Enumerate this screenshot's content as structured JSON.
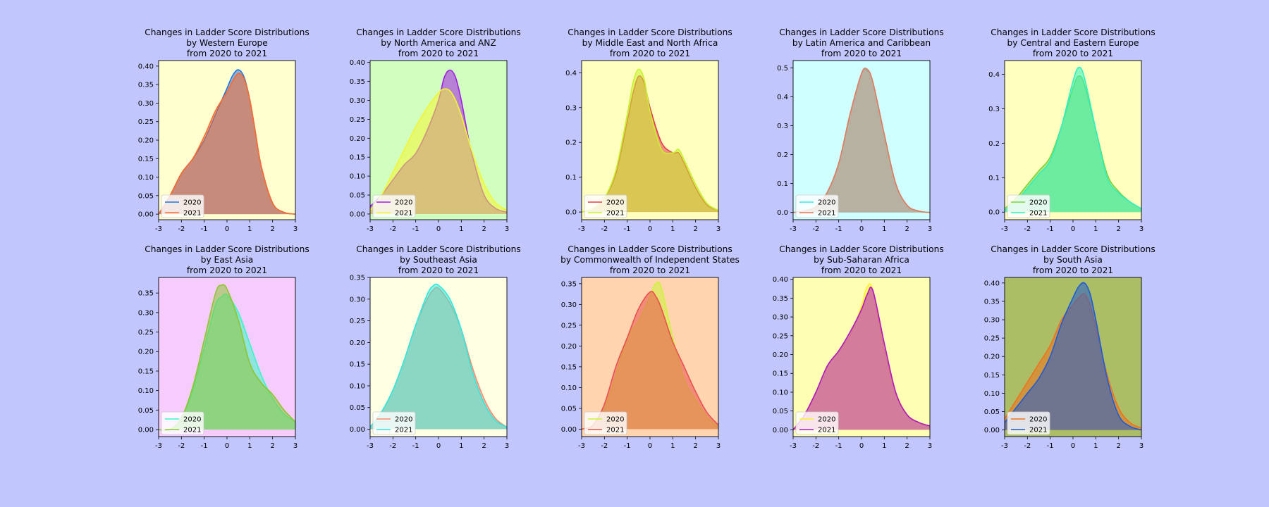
{
  "figure": {
    "background": "#c1c6fc"
  },
  "chart_data": [
    {
      "type": "area",
      "title": [
        "Changes in Ladder Score Distributions",
        "by Western Europe",
        "from 2020 to 2021"
      ],
      "background": "#ffffd0",
      "xlim": [
        -3,
        3
      ],
      "ylim": [
        -0.015,
        0.415
      ],
      "xticks": [
        "-3",
        "-2",
        "-1",
        "0",
        "1",
        "2",
        "3"
      ],
      "yticks": [
        "0.00",
        "0.05",
        "0.10",
        "0.15",
        "0.20",
        "0.25",
        "0.30",
        "0.35",
        "0.40"
      ],
      "x": [
        -3,
        -2.5,
        -2,
        -1.5,
        -1,
        -0.5,
        0,
        0.25,
        0.5,
        0.75,
        1,
        1.25,
        1.5,
        2,
        2.5,
        3
      ],
      "legend": "lower-left",
      "series": [
        {
          "name": "2020",
          "color": "#1f77e4",
          "values": [
            0.0,
            0.05,
            0.11,
            0.15,
            0.2,
            0.27,
            0.34,
            0.375,
            0.39,
            0.37,
            0.31,
            0.22,
            0.13,
            0.03,
            0.005,
            0.0
          ]
        },
        {
          "name": "2021",
          "color": "#ff6a2c",
          "values": [
            0.0,
            0.05,
            0.11,
            0.15,
            0.21,
            0.28,
            0.33,
            0.36,
            0.38,
            0.365,
            0.31,
            0.22,
            0.13,
            0.03,
            0.005,
            0.0
          ]
        }
      ]
    },
    {
      "type": "area",
      "title": [
        "Changes in Ladder Score Distributions",
        "by North America and ANZ",
        "from 2020 to 2021"
      ],
      "background": "#d0ffc0",
      "xlim": [
        -3,
        3
      ],
      "ylim": [
        -0.015,
        0.405
      ],
      "xticks": [
        "-3",
        "-2",
        "-1",
        "0",
        "1",
        "2",
        "3"
      ],
      "yticks": [
        "0.00",
        "0.05",
        "0.10",
        "0.15",
        "0.20",
        "0.25",
        "0.30",
        "0.35",
        "0.40"
      ],
      "x": [
        -3,
        -2.5,
        -2,
        -1.5,
        -1,
        -0.5,
        0,
        0.25,
        0.5,
        0.75,
        1,
        1.25,
        1.5,
        2,
        2.5,
        3
      ],
      "legend": "lower-left",
      "series": [
        {
          "name": "2020",
          "color": "#a21ce6",
          "values": [
            0.02,
            0.05,
            0.09,
            0.13,
            0.16,
            0.22,
            0.3,
            0.36,
            0.38,
            0.36,
            0.3,
            0.22,
            0.15,
            0.05,
            0.015,
            0.005
          ]
        },
        {
          "name": "2021",
          "color": "#f2f531",
          "values": [
            0.01,
            0.05,
            0.11,
            0.17,
            0.23,
            0.28,
            0.32,
            0.33,
            0.325,
            0.3,
            0.26,
            0.21,
            0.16,
            0.08,
            0.03,
            0.01
          ]
        }
      ]
    },
    {
      "type": "area",
      "title": [
        "Changes in Ladder Score Distributions",
        "by Middle East and North Africa",
        "from 2020 to 2021"
      ],
      "background": "#ffffc0",
      "xlim": [
        -3,
        3
      ],
      "ylim": [
        -0.022,
        0.435
      ],
      "xticks": [
        "-3",
        "-2",
        "-1",
        "0",
        "1",
        "2",
        "3"
      ],
      "yticks": [
        "0.0",
        "0.1",
        "0.2",
        "0.3",
        "0.4"
      ],
      "x": [
        -3,
        -2.5,
        -2,
        -1.5,
        -1,
        -0.75,
        -0.5,
        -0.25,
        0,
        0.5,
        1,
        1.25,
        1.5,
        2,
        2.5,
        3
      ],
      "legend": "lower-left",
      "series": [
        {
          "name": "2020",
          "color": "#e8394e",
          "values": [
            0.0,
            0.01,
            0.04,
            0.11,
            0.26,
            0.34,
            0.39,
            0.37,
            0.3,
            0.2,
            0.17,
            0.17,
            0.14,
            0.07,
            0.02,
            0.005
          ]
        },
        {
          "name": "2021",
          "color": "#c6f32e",
          "values": [
            0.0,
            0.01,
            0.04,
            0.12,
            0.28,
            0.37,
            0.41,
            0.38,
            0.29,
            0.18,
            0.17,
            0.18,
            0.15,
            0.08,
            0.025,
            0.005
          ]
        }
      ]
    },
    {
      "type": "area",
      "title": [
        "Changes in Ladder Score Distributions",
        "by Latin America and Caribbean",
        "from 2020 to 2021"
      ],
      "background": "#d0ffff",
      "xlim": [
        -3,
        3
      ],
      "ylim": [
        -0.025,
        0.525
      ],
      "xticks": [
        "-3",
        "-2",
        "-1",
        "0",
        "1",
        "2",
        "3"
      ],
      "yticks": [
        "0.0",
        "0.1",
        "0.2",
        "0.3",
        "0.4",
        "0.5"
      ],
      "x": [
        -3,
        -2.5,
        -2,
        -1.5,
        -1,
        -0.5,
        0,
        0.25,
        0.5,
        1,
        1.5,
        2,
        2.5,
        3
      ],
      "legend": "lower-left",
      "series": [
        {
          "name": "2020",
          "color": "#35ece9",
          "values": [
            0.0,
            0.005,
            0.02,
            0.07,
            0.17,
            0.34,
            0.48,
            0.49,
            0.45,
            0.27,
            0.1,
            0.025,
            0.005,
            0.0
          ]
        },
        {
          "name": "2021",
          "color": "#e8785c",
          "values": [
            0.0,
            0.005,
            0.02,
            0.07,
            0.17,
            0.34,
            0.48,
            0.495,
            0.45,
            0.27,
            0.1,
            0.025,
            0.005,
            0.0
          ]
        }
      ]
    },
    {
      "type": "area",
      "title": [
        "Changes in Ladder Score Distributions",
        "by Central and Eastern Europe",
        "from 2020 to 2021"
      ],
      "background": "#ffffc0",
      "xlim": [
        -3,
        3
      ],
      "ylim": [
        -0.022,
        0.44
      ],
      "xticks": [
        "-3",
        "-2",
        "-1",
        "0",
        "1",
        "2",
        "3"
      ],
      "yticks": [
        "0.0",
        "0.1",
        "0.2",
        "0.3",
        "0.4"
      ],
      "x": [
        -3,
        -2.5,
        -2,
        -1.5,
        -1,
        -0.5,
        0,
        0.25,
        0.5,
        1,
        1.5,
        2,
        2.5,
        3
      ],
      "legend": "lower-left",
      "series": [
        {
          "name": "2020",
          "color": "#7ed33b",
          "values": [
            0.01,
            0.04,
            0.08,
            0.12,
            0.16,
            0.25,
            0.36,
            0.395,
            0.37,
            0.24,
            0.11,
            0.06,
            0.03,
            0.01
          ]
        },
        {
          "name": "2021",
          "color": "#2ff0c2",
          "values": [
            0.005,
            0.03,
            0.07,
            0.11,
            0.15,
            0.25,
            0.38,
            0.42,
            0.39,
            0.24,
            0.1,
            0.055,
            0.03,
            0.01
          ]
        }
      ]
    },
    {
      "type": "area",
      "title": [
        "Changes in Ladder Score Distributions",
        "by East Asia",
        "from 2020 to 2021"
      ],
      "background": "#f5ccfc",
      "xlim": [
        -3,
        3
      ],
      "ylim": [
        -0.018,
        0.39
      ],
      "xticks": [
        "-3",
        "-2",
        "-1",
        "0",
        "1",
        "2",
        "3"
      ],
      "yticks": [
        "0.00",
        "0.05",
        "0.10",
        "0.15",
        "0.20",
        "0.25",
        "0.30",
        "0.35"
      ],
      "x": [
        -3,
        -2.5,
        -2,
        -1.5,
        -1,
        -0.5,
        -0.25,
        0,
        0.5,
        1,
        1.5,
        2,
        2.5,
        3
      ],
      "legend": "lower-left",
      "series": [
        {
          "name": "2020",
          "color": "#38f7c6",
          "values": [
            0.0,
            0.0,
            0.03,
            0.1,
            0.21,
            0.32,
            0.34,
            0.345,
            0.3,
            0.22,
            0.14,
            0.08,
            0.04,
            0.02
          ]
        },
        {
          "name": "2021",
          "color": "#8ec530",
          "values": [
            0.0,
            0.0,
            0.03,
            0.11,
            0.23,
            0.35,
            0.37,
            0.36,
            0.28,
            0.17,
            0.12,
            0.09,
            0.05,
            0.02
          ]
        }
      ]
    },
    {
      "type": "area",
      "title": [
        "Changes in Ladder Score Distributions",
        "by Southeast Asia",
        "from 2020 to 2021"
      ],
      "background": "#ffffe4",
      "xlim": [
        -3,
        3
      ],
      "ylim": [
        -0.017,
        0.35
      ],
      "xticks": [
        "-3",
        "-2",
        "-1",
        "0",
        "1",
        "2",
        "3"
      ],
      "yticks": [
        "0.00",
        "0.05",
        "0.10",
        "0.15",
        "0.20",
        "0.25",
        "0.30",
        "0.35"
      ],
      "x": [
        -3,
        -2.5,
        -2,
        -1.5,
        -1,
        -0.5,
        -0.25,
        0,
        0.5,
        1,
        1.5,
        2,
        2.5,
        3
      ],
      "legend": "lower-left",
      "series": [
        {
          "name": "2020",
          "color": "#ff8a6e",
          "values": [
            0.005,
            0.04,
            0.09,
            0.16,
            0.24,
            0.3,
            0.32,
            0.325,
            0.29,
            0.23,
            0.14,
            0.07,
            0.025,
            0.005
          ]
        },
        {
          "name": "2021",
          "color": "#2ee9e0",
          "values": [
            0.005,
            0.04,
            0.09,
            0.16,
            0.24,
            0.31,
            0.33,
            0.332,
            0.3,
            0.23,
            0.13,
            0.06,
            0.02,
            0.005
          ]
        }
      ]
    },
    {
      "type": "area",
      "title": [
        "Changes in Ladder Score Distributions",
        "by Commonwealth of Independent States",
        "from 2020 to 2021"
      ],
      "background": "#ffd4ae",
      "xlim": [
        -3,
        3
      ],
      "ylim": [
        -0.018,
        0.365
      ],
      "xticks": [
        "-3",
        "-2",
        "-1",
        "0",
        "1",
        "2",
        "3"
      ],
      "yticks": [
        "0.00",
        "0.05",
        "0.10",
        "0.15",
        "0.20",
        "0.25",
        "0.30",
        "0.35"
      ],
      "x": [
        -3,
        -2.5,
        -2,
        -1.5,
        -1,
        -0.5,
        0,
        0.25,
        0.5,
        1,
        1.5,
        2,
        2.5,
        3
      ],
      "legend": "lower-left",
      "series": [
        {
          "name": "2020",
          "color": "#cdf33a",
          "values": [
            0.0,
            0.01,
            0.05,
            0.13,
            0.22,
            0.26,
            0.32,
            0.35,
            0.34,
            0.22,
            0.12,
            0.07,
            0.03,
            0.005
          ]
        },
        {
          "name": "2021",
          "color": "#e8514e",
          "values": [
            0.0,
            0.01,
            0.06,
            0.15,
            0.22,
            0.29,
            0.33,
            0.32,
            0.29,
            0.21,
            0.15,
            0.09,
            0.04,
            0.01
          ]
        }
      ]
    },
    {
      "type": "area",
      "title": [
        "Changes in Ladder Score Distributions",
        "by Sub-Saharan Africa",
        "from 2020 to 2021"
      ],
      "background": "#ffffb4",
      "xlim": [
        -3,
        3
      ],
      "ylim": [
        -0.018,
        0.405
      ],
      "xticks": [
        "-3",
        "-2",
        "-1",
        "0",
        "1",
        "2",
        "3"
      ],
      "yticks": [
        "0.00",
        "0.05",
        "0.10",
        "0.15",
        "0.20",
        "0.25",
        "0.30",
        "0.35",
        "0.40"
      ],
      "x": [
        -3,
        -2.5,
        -2,
        -1.5,
        -1,
        -0.5,
        0,
        0.25,
        0.5,
        1,
        1.5,
        2,
        2.5,
        3
      ],
      "legend": "lower-left",
      "series": [
        {
          "name": "2020",
          "color": "#fcf22c",
          "values": [
            0.0,
            0.04,
            0.1,
            0.17,
            0.21,
            0.25,
            0.33,
            0.38,
            0.37,
            0.21,
            0.1,
            0.04,
            0.02,
            0.01
          ]
        },
        {
          "name": "2021",
          "color": "#b216c4",
          "values": [
            0.0,
            0.04,
            0.1,
            0.17,
            0.21,
            0.26,
            0.32,
            0.36,
            0.37,
            0.23,
            0.1,
            0.04,
            0.02,
            0.01
          ]
        }
      ]
    },
    {
      "type": "area",
      "title": [
        "Changes in Ladder Score Distributions",
        "by South Asia",
        "from 2020 to 2021"
      ],
      "background": "#abbd65",
      "xlim": [
        -3,
        3
      ],
      "ylim": [
        -0.018,
        0.415
      ],
      "xticks": [
        "-3",
        "-2",
        "-1",
        "0",
        "1",
        "2",
        "3"
      ],
      "yticks": [
        "0.00",
        "0.05",
        "0.10",
        "0.15",
        "0.20",
        "0.25",
        "0.30",
        "0.35",
        "0.40"
      ],
      "x": [
        -3,
        -2.5,
        -2,
        -1.5,
        -1,
        -0.5,
        0,
        0.25,
        0.5,
        0.75,
        1,
        1.5,
        2,
        2.5,
        3
      ],
      "legend": "lower-left",
      "series": [
        {
          "name": "2020",
          "color": "#f0721e",
          "values": [
            0.03,
            0.08,
            0.13,
            0.18,
            0.23,
            0.3,
            0.34,
            0.36,
            0.37,
            0.34,
            0.28,
            0.15,
            0.06,
            0.02,
            0.005
          ]
        },
        {
          "name": "2021",
          "color": "#1f5bd4",
          "values": [
            0.02,
            0.06,
            0.1,
            0.14,
            0.2,
            0.29,
            0.36,
            0.39,
            0.4,
            0.37,
            0.3,
            0.14,
            0.04,
            0.01,
            0.0
          ]
        }
      ]
    }
  ]
}
